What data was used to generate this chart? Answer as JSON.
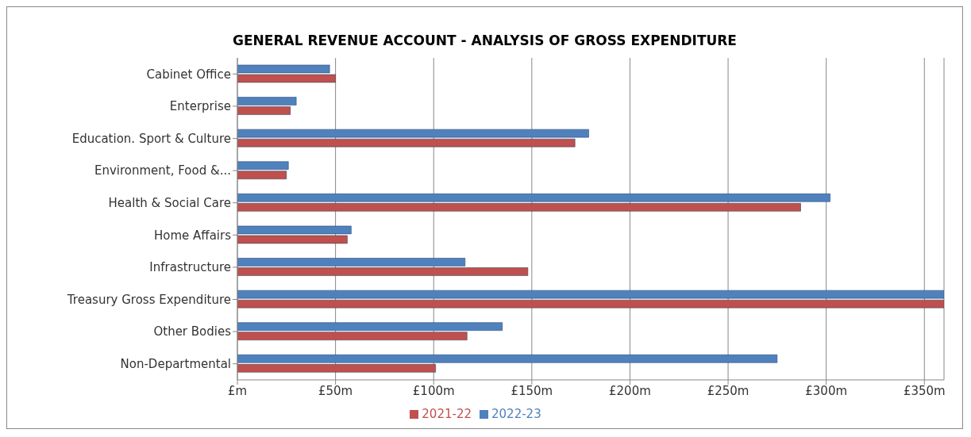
{
  "chart_data": {
    "type": "bar",
    "orientation": "horizontal",
    "title": "GENERAL REVENUE ACCOUNT - ANALYSIS OF GROSS EXPENDITURE",
    "categories": [
      "Cabinet Office",
      "Enterprise",
      "Education. Sport & Culture",
      "Environment, Food &...",
      "Health & Social Care",
      "Home Affairs",
      "Infrastructure",
      "Treasury Gross Expenditure",
      "Other Bodies",
      "Non-Departmental"
    ],
    "series": [
      {
        "name": "2022-23",
        "color": "#4f81bd",
        "values": [
          47,
          30,
          179,
          26,
          302,
          58,
          116,
          360,
          135,
          275
        ]
      },
      {
        "name": "2021-22",
        "color": "#c0504d",
        "values": [
          50,
          27,
          172,
          25,
          287,
          56,
          148,
          360,
          117,
          101
        ]
      }
    ],
    "xlim": [
      0,
      360
    ],
    "xticks": [
      {
        "value": 0,
        "label": "£m"
      },
      {
        "value": 50,
        "label": "£50m"
      },
      {
        "value": 100,
        "label": "£100m"
      },
      {
        "value": 150,
        "label": "£150m"
      },
      {
        "value": 200,
        "label": "£200m"
      },
      {
        "value": 250,
        "label": "£250m"
      },
      {
        "value": 300,
        "label": "£300m"
      },
      {
        "value": 350,
        "label": "£350m"
      }
    ],
    "grid": "x",
    "legend": "bottom"
  }
}
